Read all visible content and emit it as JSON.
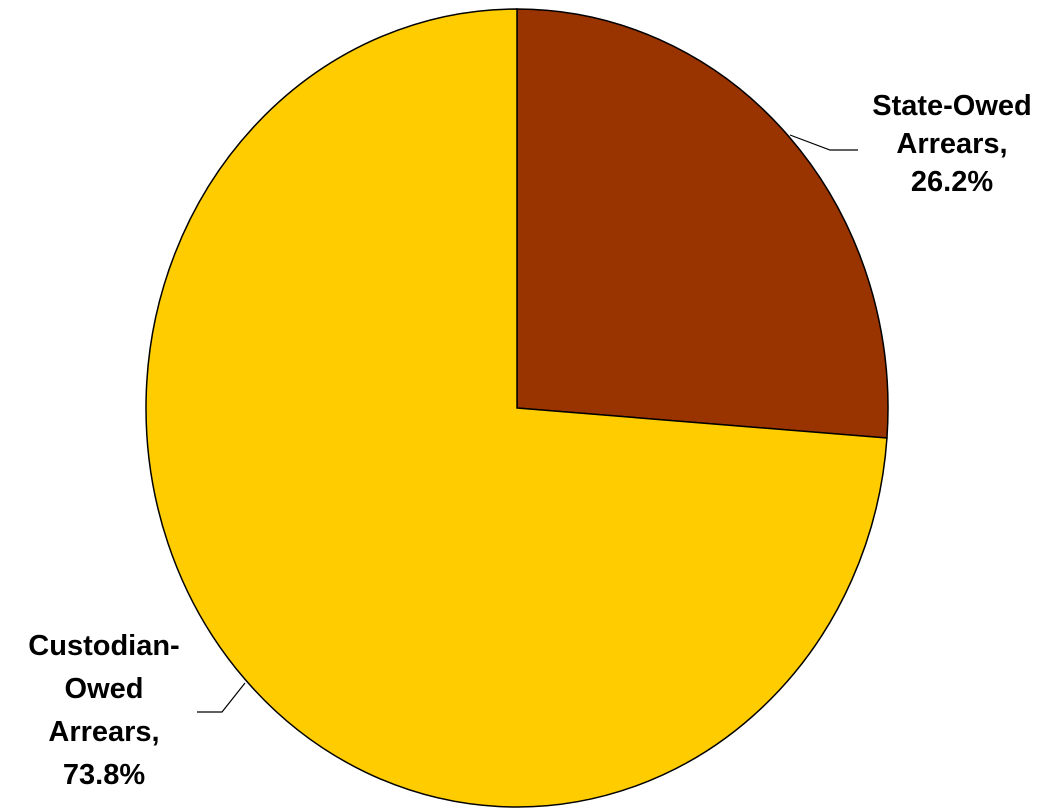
{
  "chart_data": {
    "type": "pie",
    "title": "",
    "start_angle_deg": 90,
    "direction": "clockwise",
    "legend": "none",
    "slices": [
      {
        "name": "State-Owed Arrears",
        "value": 26.2,
        "label_lines": [
          "State-Owed",
          "Arrears,",
          "26.2%"
        ],
        "color": "#993300"
      },
      {
        "name": "Custodian-Owed Arrears",
        "value": 73.8,
        "label_lines": [
          "Custodian-",
          "Owed",
          "Arrears,",
          "73.8%"
        ],
        "color": "#ffcc00"
      }
    ]
  }
}
